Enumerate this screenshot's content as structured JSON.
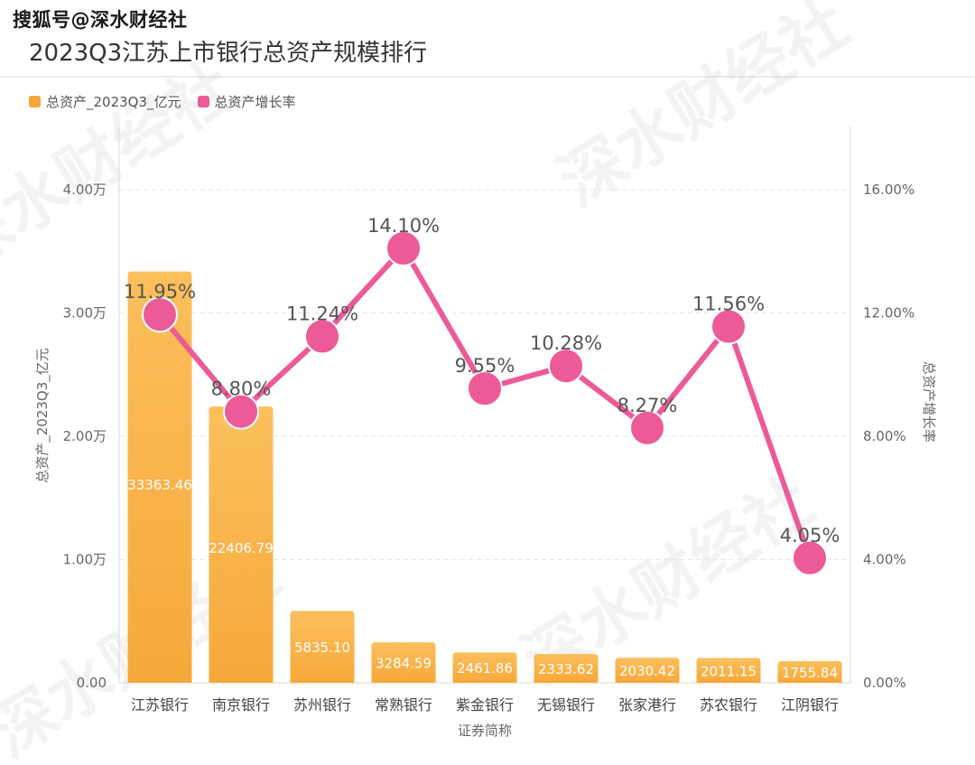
{
  "watermark": "搜狐号@深水财经社",
  "watermark_bg": "深水财经社",
  "title": "2023Q3江苏上市银行总资产规模排行",
  "colors": {
    "bar": "#f7a83a",
    "bar_light": "#fbbf5c",
    "line": "#ec5a98",
    "grid": "#e6e6e6"
  },
  "legend": [
    {
      "label": "总资产_2023Q3_亿元",
      "color": "#f5a43a"
    },
    {
      "label": "总资产增长率",
      "color": "#ec5a98"
    }
  ],
  "chart_data": {
    "type": "bar",
    "title": "2023Q3江苏上市银行总资产规模排行",
    "xlabel": "证券简称",
    "ylabel": "总资产_2023Q3_亿元",
    "y2label": "总资产增长率",
    "categories": [
      "江苏银行",
      "南京银行",
      "苏州银行",
      "常熟银行",
      "紫金银行",
      "无锡银行",
      "张家港行",
      "苏农银行",
      "江阴银行"
    ],
    "series": [
      {
        "name": "总资产_2023Q3_亿元",
        "type": "bar",
        "axis": "left",
        "values": [
          33363.46,
          22406.79,
          5835.1,
          3284.59,
          2461.86,
          2333.62,
          2030.42,
          2011.15,
          1755.84
        ],
        "value_labels": [
          "33363.46",
          "22406.79",
          "5835.10",
          "3284.59",
          "2461.86",
          "2333.62",
          "2030.42",
          "2011.15",
          "1755.84"
        ]
      },
      {
        "name": "总资产增长率",
        "type": "line",
        "axis": "right",
        "values": [
          11.95,
          8.8,
          11.24,
          14.1,
          9.55,
          10.28,
          8.27,
          11.56,
          4.05
        ],
        "value_labels": [
          "11.95%",
          "8.80%",
          "11.24%",
          "14.10%",
          "9.55%",
          "10.28%",
          "8.27%",
          "11.56%",
          "4.05%"
        ]
      }
    ],
    "ylim": [
      0,
      40000
    ],
    "y_ticks": [
      0,
      10000,
      20000,
      30000,
      40000
    ],
    "y_tick_labels": [
      "0.00",
      "1.00万",
      "2.00万",
      "3.00万",
      "4.00万"
    ],
    "y2lim": [
      0,
      16
    ],
    "y2_ticks": [
      0,
      4,
      8,
      12,
      16
    ],
    "y2_tick_labels": [
      "0.00%",
      "4.00%",
      "8.00%",
      "12.00%",
      "16.00%"
    ],
    "legend_position": "top-left",
    "grid": true
  }
}
